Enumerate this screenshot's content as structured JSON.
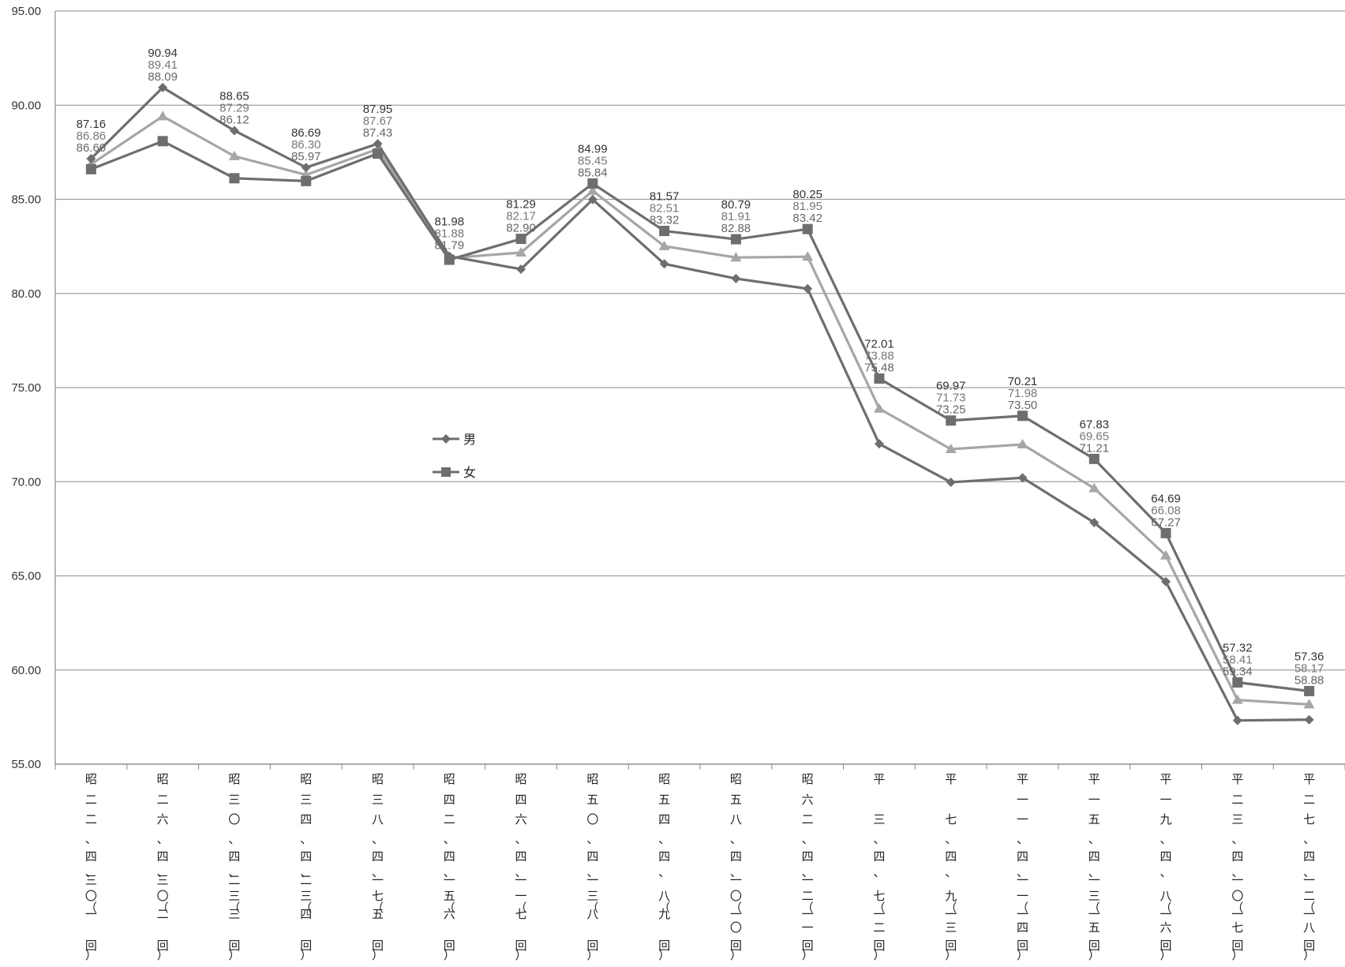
{
  "chart_data": {
    "type": "line",
    "title": "",
    "xlabel": "",
    "ylabel": "",
    "ylim": [
      55,
      95
    ],
    "yticks": [
      "55.00",
      "60.00",
      "65.00",
      "70.00",
      "75.00",
      "80.00",
      "85.00",
      "90.00",
      "95.00"
    ],
    "grid": true,
    "legend_position": "center-left",
    "categories": [
      "昭二二、四、三〇（一回）",
      "昭二六、四、三〇（二回）",
      "昭三〇、四、二三（三回）",
      "昭三四、四、二三（四回）",
      "昭三八、四、一七（五回）",
      "昭四二、四、一五（六回）",
      "昭四六、四、一一（七回）",
      "昭五〇、四、一三（八回）",
      "昭五四、四、八（九回）",
      "昭五八、四、一〇（一〇回）",
      "昭六二、四、一二（一一回）",
      "平三、四、七（一二回）",
      "平七、四、九（一三回）",
      "平一一、四、一一（一四回）",
      "平一五、四、一三（一五回）",
      "平一九、四、八（一六回）",
      "平二三、四、一〇（一七回）",
      "平二七、四、一二（一八回）"
    ],
    "category_lines": [
      [
        "昭",
        "二",
        "二",
        "、",
        "",
        "四",
        "、",
        "三",
        "〇",
        "（",
        "一",
        "",
        "回",
        "）"
      ],
      [
        "昭",
        "二",
        "六",
        "、",
        "",
        "四",
        "、",
        "三",
        "〇",
        "（",
        "二",
        "",
        "回",
        "）"
      ],
      [
        "昭",
        "三",
        "〇",
        "、",
        "",
        "四",
        "、",
        "二",
        "三",
        "（",
        "三",
        "",
        "回",
        "）"
      ],
      [
        "昭",
        "三",
        "四",
        "、",
        "",
        "四",
        "、",
        "二",
        "三",
        "（",
        "四",
        "",
        "回",
        "）"
      ],
      [
        "昭",
        "三",
        "八",
        "、",
        "",
        "四",
        "、",
        "一",
        "七",
        "（",
        "五",
        "",
        "回",
        "）"
      ],
      [
        "昭",
        "四",
        "二",
        "、",
        "",
        "四",
        "、",
        "一",
        "五",
        "（",
        "六",
        "",
        "回",
        "）"
      ],
      [
        "昭",
        "四",
        "六",
        "、",
        "",
        "四",
        "、",
        "一",
        "一",
        "（",
        "七",
        "",
        "回",
        "）"
      ],
      [
        "昭",
        "五",
        "〇",
        "、",
        "",
        "四",
        "、",
        "一",
        "三",
        "（",
        "八",
        "",
        "回",
        "）"
      ],
      [
        "昭",
        "五",
        "四",
        "、",
        "",
        "四",
        "、",
        "",
        "八",
        "（",
        "九",
        "",
        "回",
        "）"
      ],
      [
        "昭",
        "五",
        "八",
        "、",
        "",
        "四",
        "、",
        "一",
        "〇",
        "（",
        "一",
        "〇",
        "回",
        "）"
      ],
      [
        "昭",
        "六",
        "二",
        "、",
        "",
        "四",
        "、",
        "一",
        "二",
        "（",
        "一",
        "一",
        "回",
        "）"
      ],
      [
        "平",
        "",
        "三",
        "、",
        "",
        "四",
        "、",
        "",
        "七",
        "（",
        "一",
        "二",
        "回",
        "）"
      ],
      [
        "平",
        "",
        "七",
        "、",
        "",
        "四",
        "、",
        "",
        "九",
        "（",
        "一",
        "三",
        "回",
        "）"
      ],
      [
        "平",
        "一",
        "一",
        "、",
        "",
        "四",
        "、",
        "一",
        "一",
        "（",
        "一",
        "四",
        "回",
        "）"
      ],
      [
        "平",
        "一",
        "五",
        "、",
        "",
        "四",
        "、",
        "一",
        "三",
        "（",
        "一",
        "五",
        "回",
        "）"
      ],
      [
        "平",
        "一",
        "九",
        "、",
        "",
        "四",
        "、",
        "",
        "八",
        "（",
        "一",
        "六",
        "回",
        "）"
      ],
      [
        "平",
        "二",
        "三",
        "、",
        "",
        "四",
        "、",
        "一",
        "〇",
        "（",
        "一",
        "七",
        "回",
        "）"
      ],
      [
        "平",
        "二",
        "七",
        "、",
        "",
        "四",
        "、",
        "一",
        "二",
        "（",
        "一",
        "八",
        "回",
        "）"
      ]
    ],
    "series": [
      {
        "name": "男",
        "marker": "diamond",
        "color": "#6e6e6e",
        "label_color": "#333333",
        "values": [
          87.16,
          90.94,
          88.65,
          86.69,
          87.95,
          81.98,
          81.29,
          84.99,
          81.57,
          80.79,
          80.25,
          72.01,
          69.97,
          70.21,
          67.83,
          64.69,
          57.32,
          57.36
        ]
      },
      {
        "name": "女",
        "marker": "square",
        "color": "#6e6e6e",
        "label_color": "#666666",
        "values": [
          86.6,
          88.09,
          86.12,
          85.97,
          87.43,
          81.79,
          82.9,
          85.84,
          83.32,
          82.88,
          83.42,
          75.48,
          73.25,
          73.5,
          71.21,
          67.27,
          59.34,
          58.88
        ]
      },
      {
        "marker": "triangle",
        "color": "#a6a6a6",
        "label_color": "#777777",
        "values": [
          86.86,
          89.41,
          87.29,
          86.3,
          87.67,
          81.88,
          82.17,
          85.45,
          82.51,
          81.91,
          81.95,
          73.88,
          71.73,
          71.98,
          69.65,
          66.08,
          58.41,
          58.17
        ]
      }
    ],
    "legend": [
      {
        "label": "男",
        "marker": "diamond"
      },
      {
        "label": "女",
        "marker": "square"
      }
    ]
  }
}
